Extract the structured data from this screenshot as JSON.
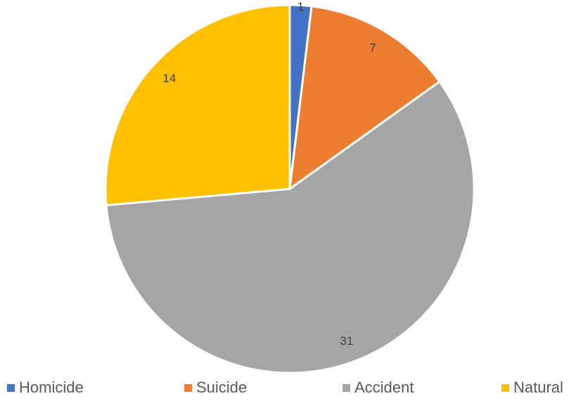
{
  "chart_data": {
    "type": "pie",
    "title": "",
    "categories": [
      "Homicide",
      "Suicide",
      "Accident",
      "Natural"
    ],
    "values": [
      1,
      7,
      31,
      14
    ],
    "colors": [
      "#4472C4",
      "#ED7D31",
      "#A5A5A5",
      "#FFC000"
    ],
    "start_angle_deg": 0,
    "direction": "clockwise",
    "data_labels": [
      "1",
      "7",
      "31",
      "14"
    ],
    "legend": {
      "position": "bottom",
      "entries": [
        "Homicide",
        "Suicide",
        "Accident",
        "Natural"
      ]
    }
  }
}
